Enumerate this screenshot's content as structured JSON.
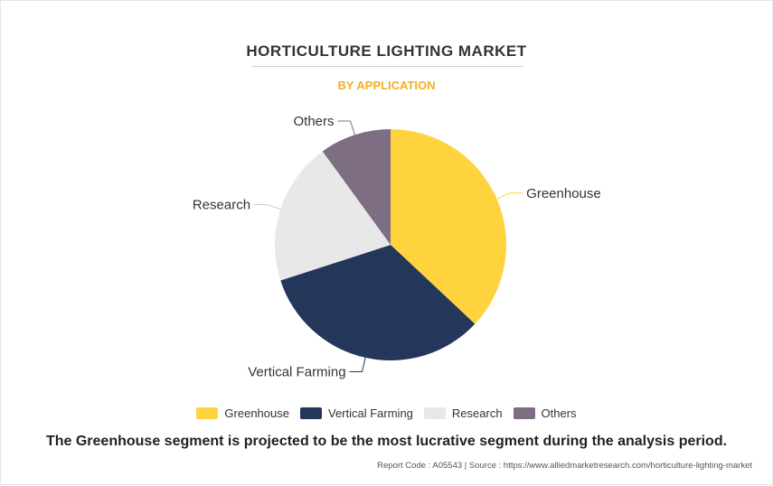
{
  "title": "HORTICULTURE LIGHTING MARKET",
  "subtitle": "BY APPLICATION",
  "caption": "The Greenhouse segment is projected to be the most lucrative segment during the analysis period.",
  "footer": "Report Code : A05543  |  Source : https://www.alliedmarketresearch.com/horticulture-lighting-market",
  "chart_data": {
    "type": "pie",
    "title": "HORTICULTURE LIGHTING MARKET",
    "subtitle": "BY APPLICATION",
    "legend_position": "bottom",
    "categories": [
      "Greenhouse",
      "Vertical Farming",
      "Research",
      "Others"
    ],
    "values": [
      37,
      33,
      20,
      10
    ],
    "colors": [
      "#ffd33d",
      "#243659",
      "#e8e8e8",
      "#7d6e83"
    ]
  }
}
